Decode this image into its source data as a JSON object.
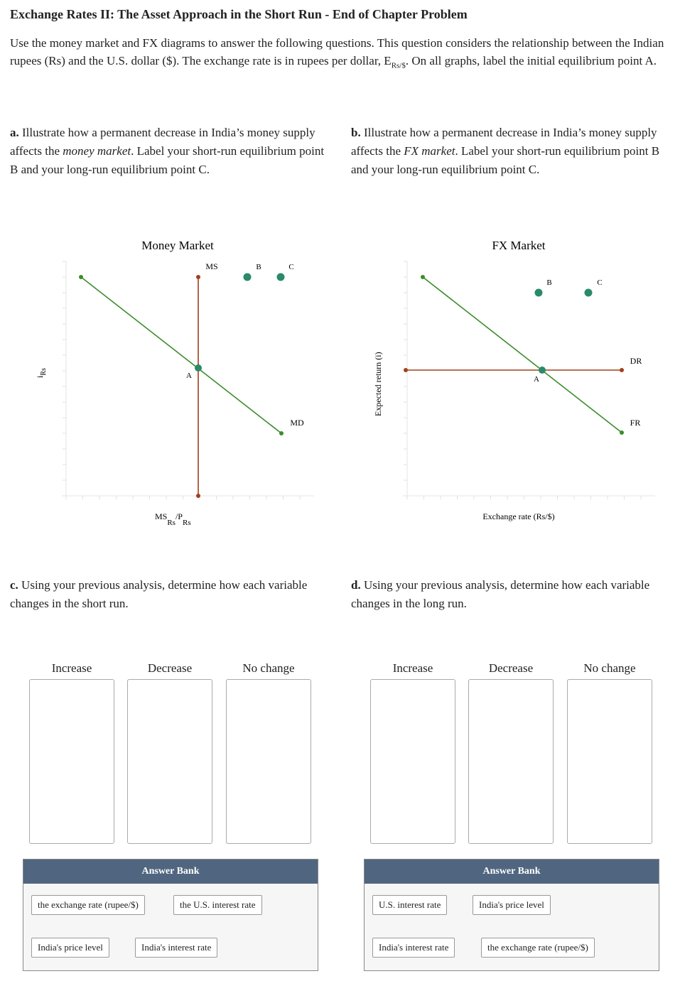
{
  "header": {
    "title": "Exchange Rates II: The Asset Approach in the Short Run - End of Chapter Problem",
    "intro_pre": "Use the money market and FX diagrams to answer the following questions. This question considers the relationship between the Indian rupees (Rs) and the U.S. dollar ($). The exchange rate is in rupees per dollar, E",
    "intro_sub": "Rs/$",
    "intro_post": ". On all graphs, label the initial equilibrium point A."
  },
  "part_a": {
    "letter": "a.",
    "pre": " Illustrate how a permanent decrease in India’s money supply affects the ",
    "em": "money market",
    "post": ". Label your short-run equilibrium point B and your long-run equilibrium point C."
  },
  "part_b": {
    "letter": "b.",
    "pre": " Illustrate how a permanent decrease in India’s money supply affects the ",
    "em": "FX market",
    "post": ". Label your short-run equilibrium point B and your long-run equilibrium point C."
  },
  "money_graph": {
    "title": "Money Market",
    "y_label_main": "i",
    "y_label_sub": "Rs",
    "x_label_ms": "MS",
    "x_label_ms_sub": "Rs",
    "x_label_p": "/P",
    "x_label_p_sub": "Rs",
    "ms_label": "MS",
    "md_label": "MD",
    "point_a": "A",
    "point_b": "B",
    "point_c": "C"
  },
  "fx_graph": {
    "title": "FX Market",
    "y_label": "Expected return (i)",
    "x_label": "Exchange rate (Rs/$)",
    "dr_label": "DR",
    "fr_label": "FR",
    "point_a": "A",
    "point_b": "B",
    "point_c": "C"
  },
  "part_c": {
    "letter": "c.",
    "text": " Using your previous analysis, determine how each variable changes in the short run.",
    "columns": [
      "Increase",
      "Decrease",
      "No change"
    ],
    "bank_title": "Answer Bank",
    "answers": [
      "the exchange rate (rupee/$)",
      "the U.S. interest rate",
      "India's price level",
      "India's interest rate"
    ]
  },
  "part_d": {
    "letter": "d.",
    "text": " Using your previous analysis, determine how each variable changes in the long run.",
    "columns": [
      "Increase",
      "Decrease",
      "No change"
    ],
    "bank_title": "Answer Bank",
    "answers": [
      "U.S. interest rate",
      "India's price level",
      "India's interest rate",
      "the exchange rate (rupee/$)"
    ]
  },
  "colors": {
    "green_line": "#3c8c2c",
    "brown_line": "#a0401a",
    "point_teal": "#2a8a6a",
    "bank_header": "#506680"
  }
}
